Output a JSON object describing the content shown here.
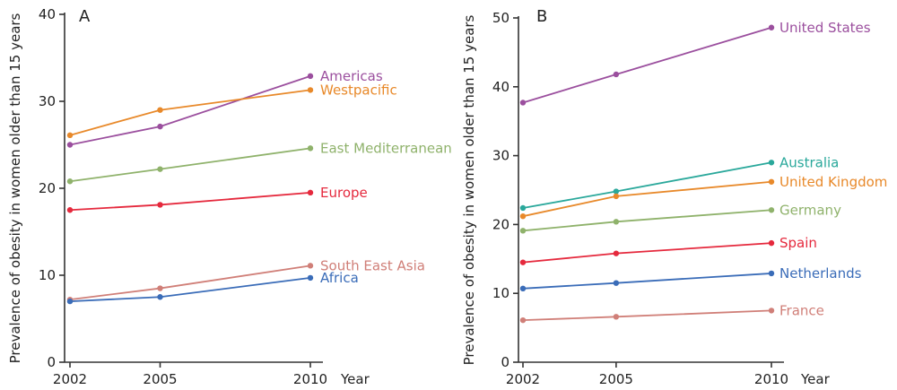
{
  "chart_data": [
    {
      "type": "line",
      "panel_letter": "A",
      "xlabel": "Year",
      "ylabel": "Prevalence of obesity in women older than 15 years",
      "x": [
        2002,
        2005,
        2010
      ],
      "x_tick_labels": [
        "2002",
        "2005",
        "2010"
      ],
      "ylim": [
        0,
        40
      ],
      "y_ticks": [
        0,
        10,
        20,
        30,
        40
      ],
      "grid": false,
      "series": [
        {
          "name": "Americas",
          "color": "#9b4f9e",
          "values": [
            25.0,
            27.1,
            32.9
          ]
        },
        {
          "name": "Westpacific",
          "color": "#e8892a",
          "values": [
            26.1,
            29.0,
            31.3
          ]
        },
        {
          "name": "East Mediterranean",
          "color": "#8fb26b",
          "values": [
            20.8,
            22.2,
            24.6
          ]
        },
        {
          "name": "Europe",
          "color": "#e5293d",
          "values": [
            17.5,
            18.1,
            19.5
          ]
        },
        {
          "name": "South East Asia",
          "color": "#d07f78",
          "values": [
            7.2,
            8.5,
            11.1
          ]
        },
        {
          "name": "Africa",
          "color": "#3a6cb8",
          "values": [
            7.0,
            7.5,
            9.7
          ]
        }
      ]
    },
    {
      "type": "line",
      "panel_letter": "B",
      "xlabel": "Year",
      "ylabel": "Prevalence of obesity in women older than 15 years",
      "x": [
        2002,
        2005,
        2010
      ],
      "x_tick_labels": [
        "2002",
        "2005",
        "2010"
      ],
      "ylim": [
        0,
        50
      ],
      "y_ticks": [
        0,
        10,
        20,
        30,
        40,
        50
      ],
      "grid": false,
      "series": [
        {
          "name": "United States",
          "color": "#9b4f9e",
          "values": [
            37.7,
            41.8,
            48.6
          ]
        },
        {
          "name": "Australia",
          "color": "#2aa89b",
          "values": [
            22.4,
            24.8,
            29.0
          ]
        },
        {
          "name": "United Kingdom",
          "color": "#e8892a",
          "values": [
            21.2,
            24.1,
            26.2
          ]
        },
        {
          "name": "Germany",
          "color": "#8fb26b",
          "values": [
            19.1,
            20.4,
            22.1
          ]
        },
        {
          "name": "Spain",
          "color": "#e5293d",
          "values": [
            14.5,
            15.8,
            17.3
          ]
        },
        {
          "name": "Netherlands",
          "color": "#3a6cb8",
          "values": [
            10.7,
            11.5,
            12.9
          ]
        },
        {
          "name": "France",
          "color": "#d07f78",
          "values": [
            6.1,
            6.6,
            7.5
          ]
        }
      ]
    }
  ]
}
